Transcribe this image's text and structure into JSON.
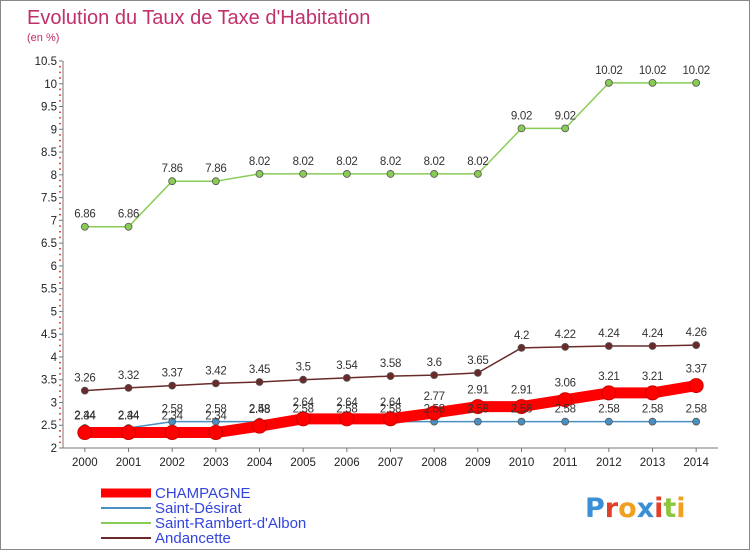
{
  "chart_data": {
    "type": "line",
    "title": "Evolution du Taux de Taxe d'Habitation",
    "subtitle": "(en %)",
    "x": [
      "2000",
      "2001",
      "2002",
      "2003",
      "2004",
      "2005",
      "2006",
      "2007",
      "2008",
      "2009",
      "2010",
      "2011",
      "2012",
      "2013",
      "2014"
    ],
    "ylim": [
      2,
      10.5
    ],
    "yticks": [
      "2",
      "2.5",
      "3",
      "3.5",
      "4",
      "4.5",
      "5",
      "5.5",
      "6",
      "6.5",
      "7",
      "7.5",
      "8",
      "8.5",
      "9",
      "9.5",
      "10",
      "10.5"
    ],
    "grid": false,
    "legend_position": "bottom-left",
    "series": [
      {
        "name": "CHAMPAGNE",
        "color": "#ff0000",
        "values": [
          2.34,
          2.34,
          2.34,
          2.34,
          2.48,
          2.64,
          2.64,
          2.64,
          2.77,
          2.91,
          2.91,
          3.06,
          3.21,
          3.21,
          3.37
        ],
        "labels": [
          "2.34",
          "2.34",
          "2.34",
          "2.34",
          "2.48",
          "2.64",
          "2.64",
          "2.64",
          "2.77",
          "2.91",
          "2.91",
          "3.06",
          "3.21",
          "3.21",
          "3.37"
        ]
      },
      {
        "name": "Saint-Désirat",
        "color": "#4a8fc1",
        "values": [
          2.44,
          2.44,
          2.58,
          2.58,
          2.58,
          2.58,
          2.58,
          2.58,
          2.58,
          2.58,
          2.58,
          2.58,
          2.58,
          2.58,
          2.58
        ],
        "labels": [
          "2.44",
          "2.44",
          "2.58",
          "2.58",
          "2.58",
          "2.58",
          "2.58",
          "2.58",
          "2.58",
          "2.58",
          "2.58",
          "2.58",
          "2.58",
          "2.58",
          "2.58"
        ]
      },
      {
        "name": "Saint-Rambert-d'Albon",
        "color": "#88cc55",
        "values": [
          6.86,
          6.86,
          7.86,
          7.86,
          8.02,
          8.02,
          8.02,
          8.02,
          8.02,
          8.02,
          9.02,
          9.02,
          10.02,
          10.02,
          10.02
        ],
        "labels": [
          "6.86",
          "6.86",
          "7.86",
          "7.86",
          "8.02",
          "8.02",
          "8.02",
          "8.02",
          "8.02",
          "8.02",
          "9.02",
          "9.02",
          "10.02",
          "10.02",
          "10.02"
        ]
      },
      {
        "name": "Andancette",
        "color": "#6b2a2a",
        "values": [
          3.26,
          3.32,
          3.37,
          3.42,
          3.45,
          3.5,
          3.54,
          3.58,
          3.6,
          3.65,
          4.2,
          4.22,
          4.24,
          4.24,
          4.26
        ],
        "labels": [
          "3.26",
          "3.32",
          "3.37",
          "3.42",
          "3.45",
          "3.5",
          "3.54",
          "3.58",
          "3.6",
          "3.65",
          "4.2",
          "4.22",
          "4.24",
          "4.24",
          "4.26"
        ]
      }
    ]
  },
  "logo": {
    "text": "Proxiti",
    "letter_colors": [
      "#3a8fd6",
      "#e0402a",
      "#f0a020",
      "#3a8fd6",
      "#e0402a",
      "#8cc63f",
      "#f0a020"
    ]
  }
}
